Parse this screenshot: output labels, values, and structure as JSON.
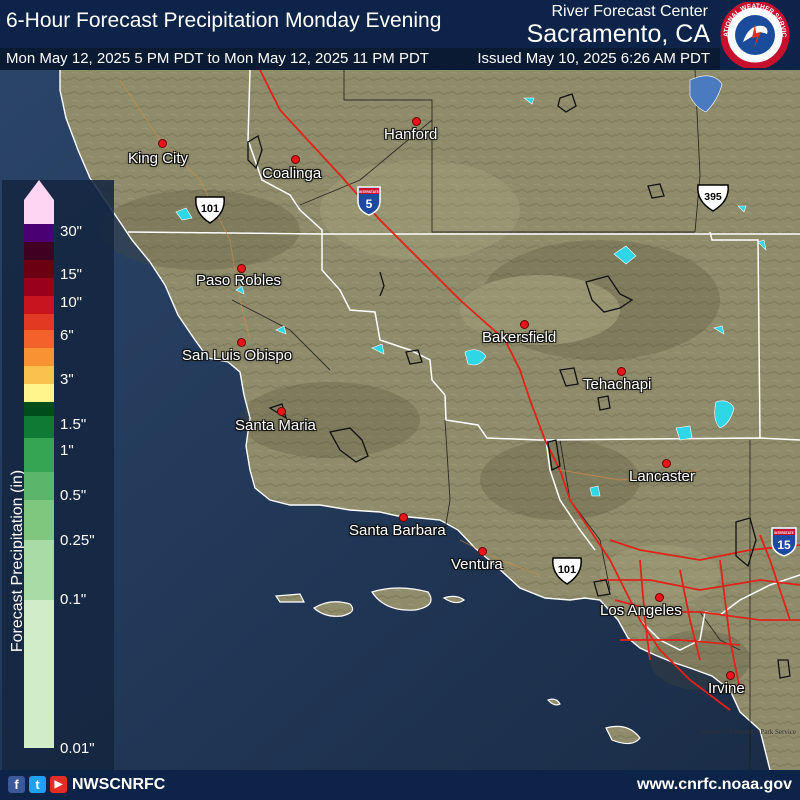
{
  "header": {
    "title": "6-Hour Forecast Precipitation Monday Evening",
    "range": "Mon May 12, 2025 5 PM PDT to Mon May 12, 2025 11 PM PDT",
    "issued": "Issued May 10, 2025 6:26 AM PDT",
    "office": "River Forecast Center",
    "city": "Sacramento, CA",
    "logo_text": "NATIONAL WEATHER SERVICE"
  },
  "map": {
    "cities": [
      {
        "name": "Hanford"
      },
      {
        "name": "King City"
      },
      {
        "name": "Coalinga"
      },
      {
        "name": "Paso Robles"
      },
      {
        "name": "San Luis Obispo"
      },
      {
        "name": "Bakersfield"
      },
      {
        "name": "Tehachapi"
      },
      {
        "name": "Santa Maria"
      },
      {
        "name": "Lancaster"
      },
      {
        "name": "Santa Barbara"
      },
      {
        "name": "Ventura"
      },
      {
        "name": "Los Angeles"
      },
      {
        "name": "Irvine"
      }
    ],
    "highways": [
      {
        "route": "5",
        "type": "interstate",
        "label_top": "INTERSTATE"
      },
      {
        "route": "101",
        "type": "us"
      },
      {
        "route": "395",
        "type": "us"
      },
      {
        "route": "15",
        "type": "interstate",
        "label_top": "INTERSTATE"
      },
      {
        "route": "101",
        "type": "us"
      }
    ],
    "source_note": "Source: US National Park Service",
    "colors": {
      "land": "#8e8c6a",
      "ocean": "#1f3552",
      "roads": "#e0221b",
      "lakes": "#2fd6e6",
      "boundaries": "#ffffff"
    }
  },
  "legend": {
    "title": "Forecast Precipitation (in)",
    "ticks": [
      "30\"",
      "15\"",
      "10\"",
      "6\"",
      "3\"",
      "1.5\"",
      "1\"",
      "0.5\"",
      "0.25\"",
      "0.1\"",
      "0.01\""
    ],
    "colors": [
      "#ffd5f4",
      "#4a0072",
      "#400022",
      "#6b0012",
      "#98001b",
      "#c8141e",
      "#e23922",
      "#f5612a",
      "#f99233",
      "#fbc14e",
      "#fef68c",
      "#004d1b",
      "#0f7a34",
      "#35a553",
      "#5cb66a",
      "#7fc67f",
      "#a8dba6",
      "#d1ecc9"
    ]
  },
  "footer": {
    "handle": "NWSCNRFC",
    "url": "www.cnrfc.noaa.gov",
    "social": [
      {
        "icon": "facebook-icon",
        "glyph": "f",
        "color": "#3b5998"
      },
      {
        "icon": "twitter-icon",
        "glyph": "t",
        "color": "#1da1f2"
      },
      {
        "icon": "youtube-icon",
        "glyph": "▶",
        "color": "#e52d27"
      }
    ]
  }
}
